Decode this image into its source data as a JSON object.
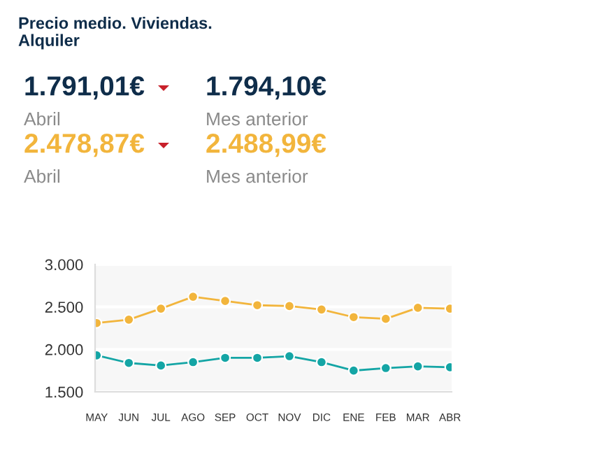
{
  "chart_data": {
    "type": "line",
    "title": "Precio medio. Viviendas.\nAlquiler",
    "annotations": [
      "1.791,01€",
      "Abril",
      "1.794,10€",
      "Mes anterior",
      "2.478,87€",
      "Abril",
      "2.488,99€",
      "Mes anterior"
    ],
    "categories": [
      "MAY",
      "JUN",
      "JUL",
      "AGO",
      "SEP",
      "OCT",
      "NOV",
      "DIC",
      "ENE",
      "FEB",
      "MAR",
      "ABR"
    ],
    "series": [
      {
        "color": "#f2b53c",
        "values": [
          2310,
          2350,
          2480,
          2620,
          2570,
          2520,
          2510,
          2470,
          2380,
          2360,
          2490,
          2480
        ]
      },
      {
        "color": "#14a5a5",
        "values": [
          1930,
          1840,
          1810,
          1850,
          1900,
          1900,
          1920,
          1850,
          1750,
          1780,
          1800,
          1790
        ]
      }
    ],
    "ylim": [
      1500,
      3000
    ],
    "yticks": [
      {
        "value": 1500,
        "label": "1.500"
      },
      {
        "value": 2000,
        "label": "2.000"
      },
      {
        "value": 2500,
        "label": "2.500"
      },
      {
        "value": 3000,
        "label": "3.000"
      }
    ],
    "grid": "y",
    "marker": "circle",
    "line_style": "solid",
    "legend": false
  }
}
